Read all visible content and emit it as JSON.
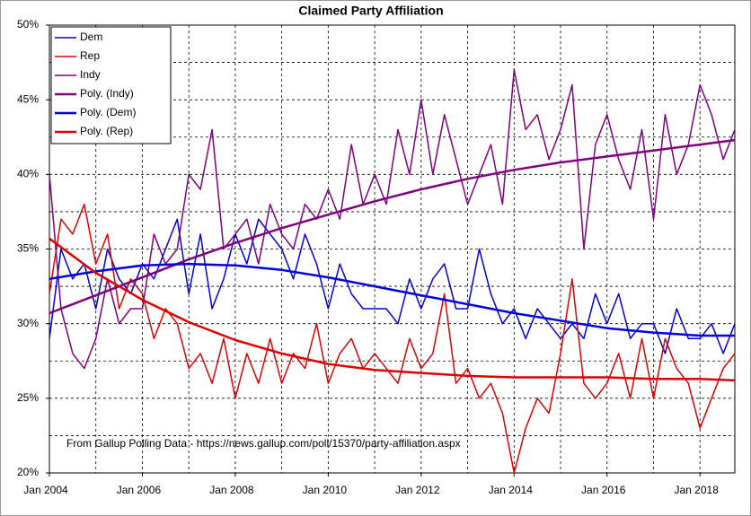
{
  "chart_data": {
    "type": "line",
    "title": "Claimed Party Affiliation",
    "annotation": "From Gallup Polling Data - https://news.gallup.com/poll/15370/party-affiliation.aspx",
    "x": [
      "2004-01",
      "2004-04",
      "2004-07",
      "2004-10",
      "2005-01",
      "2005-04",
      "2005-07",
      "2005-10",
      "2006-01",
      "2006-04",
      "2006-07",
      "2006-10",
      "2007-01",
      "2007-04",
      "2007-07",
      "2007-10",
      "2008-01",
      "2008-04",
      "2008-07",
      "2008-10",
      "2009-01",
      "2009-04",
      "2009-07",
      "2009-10",
      "2010-01",
      "2010-04",
      "2010-07",
      "2010-10",
      "2011-01",
      "2011-04",
      "2011-07",
      "2011-10",
      "2012-01",
      "2012-04",
      "2012-07",
      "2012-10",
      "2013-01",
      "2013-04",
      "2013-07",
      "2013-10",
      "2014-01",
      "2014-04",
      "2014-07",
      "2014-10",
      "2015-01",
      "2015-04",
      "2015-07",
      "2015-10",
      "2016-01",
      "2016-04",
      "2016-07",
      "2016-10",
      "2017-01",
      "2017-04",
      "2017-07",
      "2017-10",
      "2018-01",
      "2018-04",
      "2018-07",
      "2018-10"
    ],
    "series": [
      {
        "name": "Dem",
        "color": "#0000e0",
        "width": 1.5,
        "values": [
          29,
          35,
          33,
          34,
          31,
          35,
          33,
          32,
          34,
          33,
          35,
          37,
          32,
          36,
          31,
          33,
          36,
          34,
          37,
          36,
          35,
          33,
          36,
          34,
          31,
          34,
          32,
          31,
          31,
          31,
          30,
          33,
          31,
          33,
          34,
          31,
          31,
          35,
          32,
          30,
          31,
          29,
          31,
          30,
          29,
          30,
          29,
          32,
          30,
          32,
          29,
          30,
          30,
          28,
          31,
          29,
          29,
          30,
          28,
          30
        ]
      },
      {
        "name": "Rep",
        "color": "#e00000",
        "width": 1.5,
        "values": [
          32,
          37,
          36,
          38,
          34,
          36,
          31,
          33,
          32,
          29,
          31,
          30,
          27,
          28,
          26,
          29,
          25,
          28,
          26,
          29,
          26,
          28,
          27,
          30,
          26,
          28,
          29,
          27,
          28,
          27,
          26,
          29,
          27,
          28,
          32,
          26,
          27,
          25,
          26,
          24,
          20,
          23,
          25,
          24,
          28,
          33,
          26,
          25,
          26,
          28,
          25,
          29,
          25,
          29,
          27,
          26,
          23,
          25,
          27,
          28
        ]
      },
      {
        "name": "Indy",
        "color": "#800080",
        "width": 1.5,
        "values": [
          40,
          31,
          28,
          27,
          29,
          33,
          30,
          31,
          31,
          36,
          34,
          35,
          40,
          39,
          43,
          35,
          36,
          37,
          34,
          38,
          36,
          35,
          38,
          37,
          39,
          37,
          42,
          38,
          40,
          38,
          43,
          40,
          45,
          40,
          44,
          41,
          38,
          40,
          42,
          38,
          47,
          43,
          44,
          41,
          43,
          46,
          35,
          42,
          44,
          41,
          39,
          43,
          37,
          44,
          40,
          42,
          46,
          44,
          41,
          43
        ]
      },
      {
        "name": "Poly. (Indy)",
        "color": "#800080",
        "width": 2.5,
        "x": [
          "2004-01",
          "2005-01",
          "2006-01",
          "2007-01",
          "2008-01",
          "2009-01",
          "2010-01",
          "2011-01",
          "2012-01",
          "2013-01",
          "2014-01",
          "2015-01",
          "2016-01",
          "2017-01",
          "2018-01",
          "2018-10"
        ],
        "values": [
          30.7,
          31.9,
          33.1,
          34.3,
          35.4,
          36.4,
          37.3,
          38.2,
          39.0,
          39.7,
          40.3,
          40.8,
          41.2,
          41.6,
          42.0,
          42.3
        ]
      },
      {
        "name": "Poly. (Dem)",
        "color": "#0000e0",
        "width": 2.5,
        "x": [
          "2004-01",
          "2005-01",
          "2006-01",
          "2007-01",
          "2008-01",
          "2009-01",
          "2010-01",
          "2011-01",
          "2012-01",
          "2013-01",
          "2014-01",
          "2015-01",
          "2016-01",
          "2017-01",
          "2018-01",
          "2018-10"
        ],
        "values": [
          33.0,
          33.5,
          33.9,
          34.0,
          33.9,
          33.6,
          33.1,
          32.5,
          31.9,
          31.3,
          30.7,
          30.2,
          29.7,
          29.4,
          29.2,
          29.2
        ]
      },
      {
        "name": "Poly. (Rep)",
        "color": "#e00000",
        "width": 2.5,
        "x": [
          "2004-01",
          "2005-01",
          "2006-01",
          "2007-01",
          "2008-01",
          "2009-01",
          "2010-01",
          "2011-01",
          "2012-01",
          "2013-01",
          "2014-01",
          "2015-01",
          "2016-01",
          "2017-01",
          "2018-01",
          "2018-10"
        ],
        "values": [
          35.7,
          33.4,
          31.6,
          30.1,
          28.9,
          28.0,
          27.3,
          26.9,
          26.7,
          26.5,
          26.4,
          26.4,
          26.4,
          26.3,
          26.3,
          26.2
        ]
      }
    ],
    "xlim": [
      "2004-01",
      "2018-10"
    ],
    "xticks": [
      {
        "value": "2004-01",
        "label": "Jan 2004"
      },
      {
        "value": "2006-01",
        "label": "Jan 2006"
      },
      {
        "value": "2008-01",
        "label": "Jan 2008"
      },
      {
        "value": "2010-01",
        "label": "Jan 2010"
      },
      {
        "value": "2012-01",
        "label": "Jan 2012"
      },
      {
        "value": "2014-01",
        "label": "Jan 2014"
      },
      {
        "value": "2016-01",
        "label": "Jan 2016"
      },
      {
        "value": "2018-01",
        "label": "Jan 2018"
      }
    ],
    "ylim": [
      20,
      50
    ],
    "yticks": [
      {
        "value": 20,
        "label": "20%"
      },
      {
        "value": 25,
        "label": "25%"
      },
      {
        "value": 30,
        "label": "30%"
      },
      {
        "value": 35,
        "label": "35%"
      },
      {
        "value": 40,
        "label": "40%"
      },
      {
        "value": 45,
        "label": "45%"
      },
      {
        "value": 50,
        "label": "50%"
      }
    ],
    "grid": true,
    "legend": "top-left"
  }
}
